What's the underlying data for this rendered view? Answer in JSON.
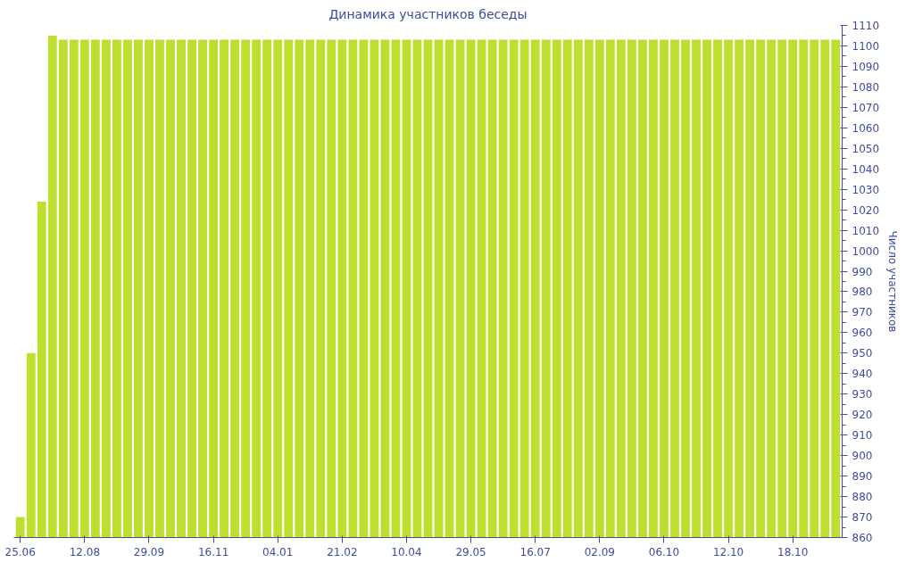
{
  "chart_data": {
    "type": "bar",
    "title": "Динамика участников беседы",
    "ylabel": "Число участников",
    "categories": [
      "25.06",
      null,
      null,
      null,
      null,
      null,
      "12.08",
      null,
      null,
      null,
      null,
      null,
      "29.09",
      null,
      null,
      null,
      null,
      null,
      "16.11",
      null,
      null,
      null,
      null,
      null,
      "04.01",
      null,
      null,
      null,
      null,
      null,
      "21.02",
      null,
      null,
      null,
      null,
      null,
      "10.04",
      null,
      null,
      null,
      null,
      null,
      "29.05",
      null,
      null,
      null,
      null,
      null,
      "16.07",
      null,
      null,
      null,
      null,
      null,
      "02.09",
      null,
      null,
      null,
      null,
      null,
      "06.10",
      null,
      null,
      null,
      null,
      null,
      "12.10",
      null,
      null,
      null,
      null,
      null,
      "18.10",
      null,
      null,
      null,
      null
    ],
    "values": [
      870,
      950,
      1024,
      1105,
      1103,
      1103,
      1103,
      1103,
      1103,
      1103,
      1103,
      1103,
      1103,
      1103,
      1103,
      1103,
      1103,
      1103,
      1103,
      1103,
      1103,
      1103,
      1103,
      1103,
      1103,
      1103,
      1103,
      1103,
      1103,
      1103,
      1103,
      1103,
      1103,
      1103,
      1103,
      1103,
      1103,
      1103,
      1103,
      1103,
      1103,
      1103,
      1103,
      1103,
      1103,
      1103,
      1103,
      1103,
      1103,
      1103,
      1103,
      1103,
      1103,
      1103,
      1103,
      1103,
      1103,
      1103,
      1103,
      1103,
      1103,
      1103,
      1103,
      1103,
      1103,
      1103,
      1103,
      1103,
      1103,
      1103,
      1103,
      1103,
      1103,
      1103,
      1103,
      1103,
      1103
    ],
    "color": "#bde030",
    "ylim": [
      860,
      1110
    ],
    "yticks": [
      860,
      870,
      880,
      890,
      900,
      910,
      920,
      930,
      940,
      950,
      960,
      970,
      980,
      990,
      1000,
      1010,
      1020,
      1030,
      1040,
      1050,
      1060,
      1070,
      1080,
      1090,
      1100,
      1110
    ],
    "grid": false
  }
}
